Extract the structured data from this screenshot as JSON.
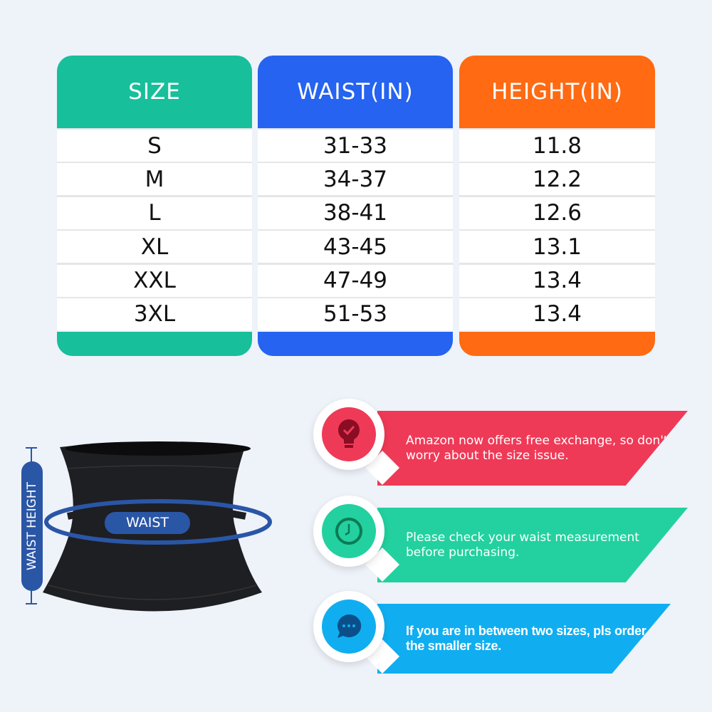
{
  "size_table": {
    "columns": [
      {
        "header": "SIZE",
        "color": "#17bf9b",
        "values": [
          "S",
          "M",
          "L",
          "XL",
          "XXL",
          "3XL"
        ]
      },
      {
        "header": "WAIST(IN)",
        "color": "#2563f0",
        "values": [
          "31-33",
          "34-37",
          "38-41",
          "43-45",
          "47-49",
          "51-53"
        ]
      },
      {
        "header": "HEIGHT(IN)",
        "color": "#ff6a12",
        "values": [
          "11.8",
          "12.2",
          "12.6",
          "13.1",
          "13.4",
          "13.4"
        ]
      }
    ]
  },
  "diagram": {
    "waist_label": "WAIST",
    "height_label": "WAIST HEIGHT",
    "accent": "#2a56a6"
  },
  "tips": [
    {
      "icon": "lightbulb-check-icon",
      "color": "#ef3a57",
      "text": "Amazon now offers free exchange, so don't worry about the size issue."
    },
    {
      "icon": "clock-icon",
      "color": "#22d19f",
      "text": "Please check your waist measurement before purchasing."
    },
    {
      "icon": "chat-bubble-icon",
      "color": "#10aef0",
      "text": "If you are in between two sizes, pls order the smaller size."
    }
  ]
}
